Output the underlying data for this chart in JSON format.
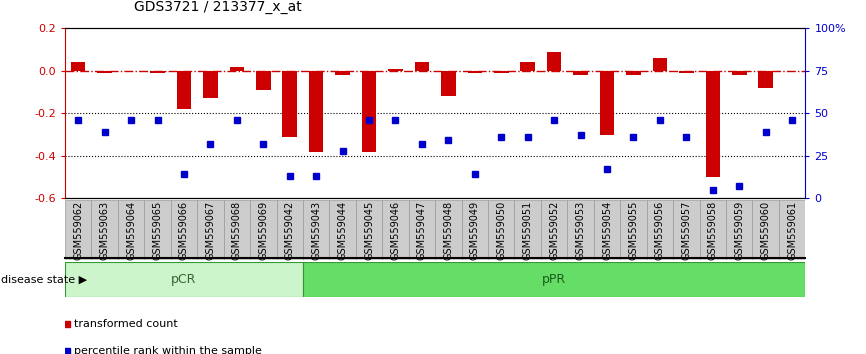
{
  "title": "GDS3721 / 213377_x_at",
  "samples": [
    "GSM559062",
    "GSM559063",
    "GSM559064",
    "GSM559065",
    "GSM559066",
    "GSM559067",
    "GSM559068",
    "GSM559069",
    "GSM559042",
    "GSM559043",
    "GSM559044",
    "GSM559045",
    "GSM559046",
    "GSM559047",
    "GSM559048",
    "GSM559049",
    "GSM559050",
    "GSM559051",
    "GSM559052",
    "GSM559053",
    "GSM559054",
    "GSM559055",
    "GSM559056",
    "GSM559057",
    "GSM559058",
    "GSM559059",
    "GSM559060",
    "GSM559061"
  ],
  "transformed_count": [
    0.04,
    -0.01,
    0.0,
    -0.01,
    -0.18,
    -0.13,
    0.02,
    -0.09,
    -0.31,
    -0.38,
    -0.02,
    -0.38,
    0.01,
    0.04,
    -0.12,
    -0.01,
    -0.01,
    0.04,
    0.09,
    -0.02,
    -0.3,
    -0.02,
    0.06,
    -0.01,
    -0.5,
    -0.02,
    -0.08,
    0.0
  ],
  "percentile_rank": [
    46,
    39,
    46,
    46,
    14,
    32,
    46,
    32,
    13,
    13,
    28,
    46,
    46,
    32,
    34,
    14,
    36,
    36,
    46,
    37,
    17,
    36,
    46,
    36,
    5,
    7,
    39,
    46
  ],
  "pCR_count": 9,
  "pPR_count": 19,
  "ylim_left": [
    -0.6,
    0.2
  ],
  "ylim_right": [
    0,
    100
  ],
  "yticks_left": [
    -0.6,
    -0.4,
    -0.2,
    0.0,
    0.2
  ],
  "yticks_right": [
    0,
    25,
    50,
    75,
    100
  ],
  "hline_vals": [
    -0.2,
    -0.4
  ],
  "bar_color": "#cc0000",
  "dot_color": "#0000cc",
  "dashed_line_color": "#cc0000",
  "pCR_facecolor": "#ccf5cc",
  "pPR_facecolor": "#66dd66",
  "tick_bg_color": "#cccccc",
  "tick_border_color": "#999999",
  "legend_bar_label": "transformed count",
  "legend_dot_label": "percentile rank within the sample",
  "disease_state_label": "disease state",
  "pCR_label": "pCR",
  "pPR_label": "pPR",
  "title_fontsize": 10,
  "tick_fontsize": 7,
  "axis_fontsize": 8
}
